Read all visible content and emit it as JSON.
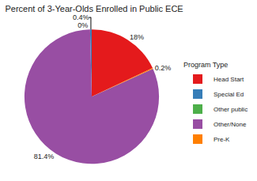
{
  "chart_data": {
    "type": "pie",
    "title": "Percent of 3-Year-Olds Enrolled in Public ECE",
    "legend_title": "Program Type",
    "categories": [
      "Head Start",
      "Special Ed",
      "Other public",
      "Other/None",
      "Pre-K"
    ],
    "values": [
      18,
      0.4,
      0,
      81.4,
      0.2
    ],
    "value_labels": [
      "18%",
      "0.4%",
      "0%",
      "81.4%",
      "0.2%"
    ],
    "colors": [
      "#e41a1c",
      "#377eb8",
      "#4daf4a",
      "#984ea3",
      "#ff7f00"
    ],
    "data_labels": true,
    "legend": "right"
  }
}
